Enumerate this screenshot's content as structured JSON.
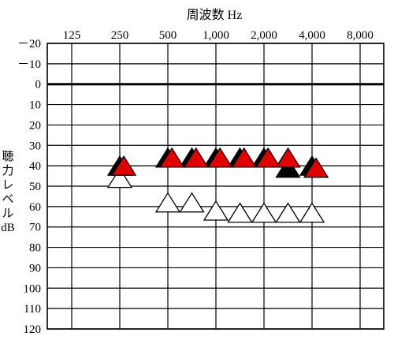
{
  "chart_data": {
    "type": "scatter",
    "title": "",
    "xlabel": "周波数 Hz",
    "ylabel": [
      "聴",
      "力",
      "レ",
      "ベ",
      "ル",
      "dB"
    ],
    "x_scale": "log2",
    "x_ticks": [
      125,
      250,
      500,
      1000,
      2000,
      4000,
      8000
    ],
    "x_tick_labels": [
      "125",
      "250",
      "500",
      "1,000",
      "2,000",
      "4,000",
      "8,000"
    ],
    "y_ticks": [
      -20,
      -10,
      0,
      10,
      20,
      30,
      40,
      50,
      60,
      70,
      80,
      90,
      100,
      110,
      120
    ],
    "y_tick_labels": [
      "－20",
      "－10",
      "0",
      "10",
      "20",
      "30",
      "40",
      "50",
      "60",
      "70",
      "80",
      "90",
      "100",
      "110",
      "120"
    ],
    "ylim": [
      -20,
      120
    ],
    "y_inverted": true,
    "reference_line_y": 0,
    "grid": true,
    "legend": "none",
    "series": [
      {
        "marker": "triangle",
        "color": "#000000",
        "points": [
          {
            "x": 250,
            "y": 40
          },
          {
            "x": 500,
            "y": 36
          },
          {
            "x": 707,
            "y": 36
          },
          {
            "x": 1000,
            "y": 36
          },
          {
            "x": 1414,
            "y": 36
          },
          {
            "x": 2000,
            "y": 36
          },
          {
            "x": 2828,
            "y": 41
          },
          {
            "x": 4000,
            "y": 40
          }
        ]
      },
      {
        "marker": "triangle",
        "color": "#e00000",
        "points": [
          {
            "x": 265,
            "y": 40
          },
          {
            "x": 530,
            "y": 36
          },
          {
            "x": 750,
            "y": 36
          },
          {
            "x": 1060,
            "y": 36
          },
          {
            "x": 1500,
            "y": 36
          },
          {
            "x": 2120,
            "y": 36
          },
          {
            "x": 2828,
            "y": 36
          },
          {
            "x": 4240,
            "y": 41
          }
        ]
      },
      {
        "marker": "triangle-outline",
        "color": "#ffffff",
        "points": [
          {
            "x": 250,
            "y": 46
          },
          {
            "x": 500,
            "y": 58
          },
          {
            "x": 707,
            "y": 58
          },
          {
            "x": 1000,
            "y": 62
          },
          {
            "x": 1414,
            "y": 63
          },
          {
            "x": 2000,
            "y": 63
          },
          {
            "x": 2828,
            "y": 63
          },
          {
            "x": 4000,
            "y": 63
          }
        ]
      }
    ]
  }
}
